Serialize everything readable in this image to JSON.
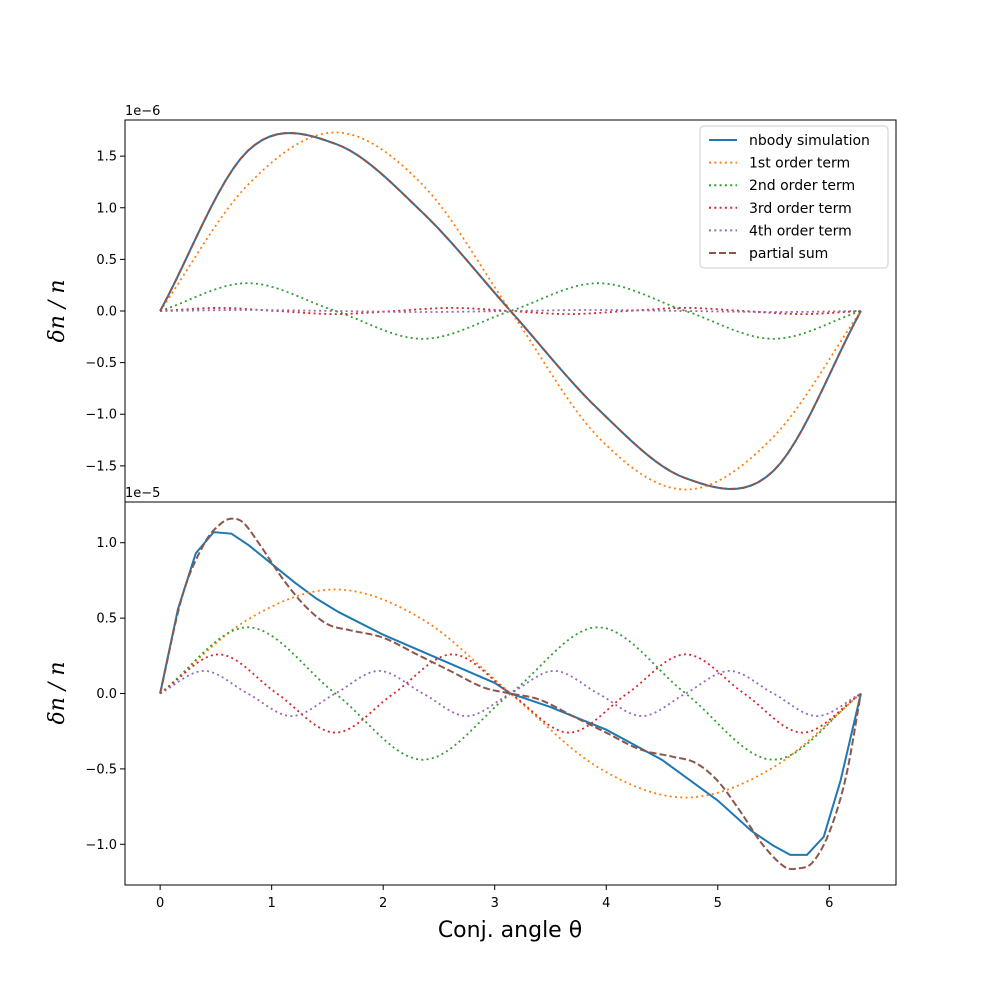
{
  "chart_data": [
    {
      "type": "line",
      "offset_label": "1e−6",
      "ylabel": "δn / n",
      "ylim": [
        -1.85,
        1.85
      ],
      "yticks": [
        -1.5,
        -1.0,
        -0.5,
        0.0,
        0.5,
        1.0,
        1.5
      ],
      "ytick_labels": [
        "−1.5",
        "−1.0",
        "−0.5",
        "0.0",
        "0.5",
        "1.0",
        "1.5"
      ],
      "xlim": [
        -0.315,
        6.598
      ],
      "legend": {
        "position": "top-right"
      },
      "series": [
        {
          "name": "nbody simulation",
          "color": "#1f77b4",
          "style": "solid",
          "x": [
            0,
            0.785,
            1.571,
            2.356,
            3.142,
            3.927,
            4.712,
            5.498,
            6.283
          ],
          "y": [
            0,
            1.55,
            1.62,
            0.95,
            0,
            -0.95,
            -1.62,
            -1.55,
            0
          ]
        },
        {
          "name": "1st order term",
          "color": "#ff7f0e",
          "style": "dotted",
          "x": [
            0,
            0.785,
            1.571,
            2.356,
            3.142,
            3.927,
            4.712,
            5.498,
            6.283
          ],
          "y": [
            0,
            1.22,
            1.73,
            1.22,
            0,
            -1.22,
            -1.73,
            -1.22,
            0
          ]
        },
        {
          "name": "2nd order term",
          "color": "#2ca02c",
          "style": "dotted",
          "x": [
            0,
            0.785,
            1.571,
            2.356,
            3.142,
            3.927,
            4.712,
            5.498,
            6.283
          ],
          "y": [
            0,
            0.27,
            0,
            -0.27,
            0,
            0.27,
            0,
            -0.27,
            0
          ]
        },
        {
          "name": "3rd order term",
          "color": "#d62728",
          "style": "dotted",
          "x": [
            0,
            0.524,
            1.047,
            1.571,
            2.094,
            2.618,
            3.142,
            3.665,
            4.189,
            4.712,
            5.236,
            5.76,
            6.283
          ],
          "y": [
            0,
            0.03,
            0,
            -0.03,
            0,
            0.03,
            0,
            -0.03,
            0,
            0.03,
            0,
            -0.03,
            0
          ]
        },
        {
          "name": "4th order term",
          "color": "#9467bd",
          "style": "dotted",
          "x": [
            0,
            0.785,
            1.571,
            2.356,
            3.142,
            3.927,
            4.712,
            5.498,
            6.283
          ],
          "y": [
            0,
            0.01,
            0,
            -0.01,
            0,
            0.01,
            0,
            -0.01,
            0
          ]
        },
        {
          "name": "partial sum",
          "color": "#8c564b",
          "style": "dashed",
          "x": [
            0,
            0.785,
            1.571,
            2.356,
            3.142,
            3.927,
            4.712,
            5.498,
            6.283
          ],
          "y": [
            0,
            1.55,
            1.62,
            0.95,
            0,
            -0.95,
            -1.62,
            -1.55,
            0
          ]
        }
      ]
    },
    {
      "type": "line",
      "offset_label": "1e−5",
      "ylabel": "δn / n",
      "xlabel": "Conj. angle θ",
      "ylim": [
        -1.27,
        1.27
      ],
      "yticks": [
        -1.0,
        -0.5,
        0.0,
        0.5,
        1.0
      ],
      "ytick_labels": [
        "−1.0",
        "−0.5",
        "0.0",
        "0.5",
        "1.0"
      ],
      "xlim": [
        -0.315,
        6.598
      ],
      "xticks": [
        0,
        1,
        2,
        3,
        4,
        5,
        6
      ],
      "xtick_labels": [
        "0",
        "1",
        "2",
        "3",
        "4",
        "5",
        "6"
      ],
      "series": [
        {
          "name": "nbody simulation",
          "color": "#1f77b4",
          "style": "solid",
          "x": [
            0,
            0.16,
            0.32,
            0.48,
            0.64,
            0.8,
            1.0,
            1.2,
            1.4,
            1.6,
            2.0,
            2.5,
            3.0,
            3.142,
            3.5,
            4.0,
            4.5,
            5.0,
            5.3,
            5.5,
            5.65,
            5.8,
            5.95,
            6.1,
            6.283
          ],
          "y": [
            0,
            0.56,
            0.93,
            1.07,
            1.06,
            0.98,
            0.86,
            0.74,
            0.63,
            0.54,
            0.39,
            0.23,
            0.07,
            0,
            -0.09,
            -0.24,
            -0.44,
            -0.71,
            -0.91,
            -1.01,
            -1.07,
            -1.07,
            -0.95,
            -0.58,
            0
          ]
        },
        {
          "name": "1st order term",
          "color": "#ff7f0e",
          "style": "dotted",
          "x": [
            0,
            0.785,
            1.571,
            2.356,
            3.142,
            3.927,
            4.712,
            5.498,
            6.283
          ],
          "y": [
            0,
            0.49,
            0.69,
            0.49,
            0,
            -0.49,
            -0.69,
            -0.49,
            0
          ]
        },
        {
          "name": "2nd order term",
          "color": "#2ca02c",
          "style": "dotted",
          "x": [
            0,
            0.785,
            1.571,
            2.356,
            3.142,
            3.927,
            4.712,
            5.498,
            6.283
          ],
          "y": [
            0,
            0.44,
            0,
            -0.44,
            0,
            0.44,
            0,
            -0.44,
            0
          ]
        },
        {
          "name": "3rd order term",
          "color": "#d62728",
          "style": "dotted",
          "x": [
            0,
            0.524,
            1.047,
            1.571,
            2.094,
            2.618,
            3.142,
            3.665,
            4.189,
            4.712,
            5.236,
            5.76,
            6.283
          ],
          "y": [
            0,
            0.26,
            0,
            -0.26,
            0,
            0.26,
            0,
            -0.26,
            0,
            0.26,
            0,
            -0.26,
            0
          ]
        },
        {
          "name": "4th order term",
          "color": "#9467bd",
          "style": "dotted",
          "x": [
            0,
            0.393,
            0.785,
            1.178,
            1.571,
            1.963,
            2.356,
            2.749,
            3.142,
            3.534,
            3.927,
            4.32,
            4.712,
            5.105,
            5.498,
            5.89,
            6.283
          ],
          "y": [
            0,
            0.15,
            0,
            -0.15,
            0,
            0.15,
            0,
            -0.15,
            0,
            0.15,
            0,
            -0.15,
            0,
            0.15,
            0,
            -0.15,
            0
          ]
        },
        {
          "name": "partial sum",
          "color": "#8c564b",
          "style": "dashed",
          "x": [
            0,
            0.2,
            0.4,
            0.55,
            0.65,
            0.75,
            0.9,
            1.1,
            1.3,
            1.5,
            1.7,
            2.0,
            2.3,
            2.6,
            2.9,
            3.142,
            3.4,
            3.7,
            4.0,
            4.3,
            4.6,
            4.8,
            5.0,
            5.2,
            5.4,
            5.6,
            5.72,
            5.85,
            6.0,
            6.15,
            6.283
          ],
          "y": [
            0,
            0.65,
            1.0,
            1.13,
            1.16,
            1.13,
            0.98,
            0.76,
            0.58,
            0.46,
            0.42,
            0.37,
            0.26,
            0.15,
            0.04,
            0,
            -0.04,
            -0.15,
            -0.26,
            -0.37,
            -0.42,
            -0.46,
            -0.58,
            -0.78,
            -1.0,
            -1.15,
            -1.16,
            -1.12,
            -0.92,
            -0.55,
            0
          ]
        }
      ]
    }
  ]
}
